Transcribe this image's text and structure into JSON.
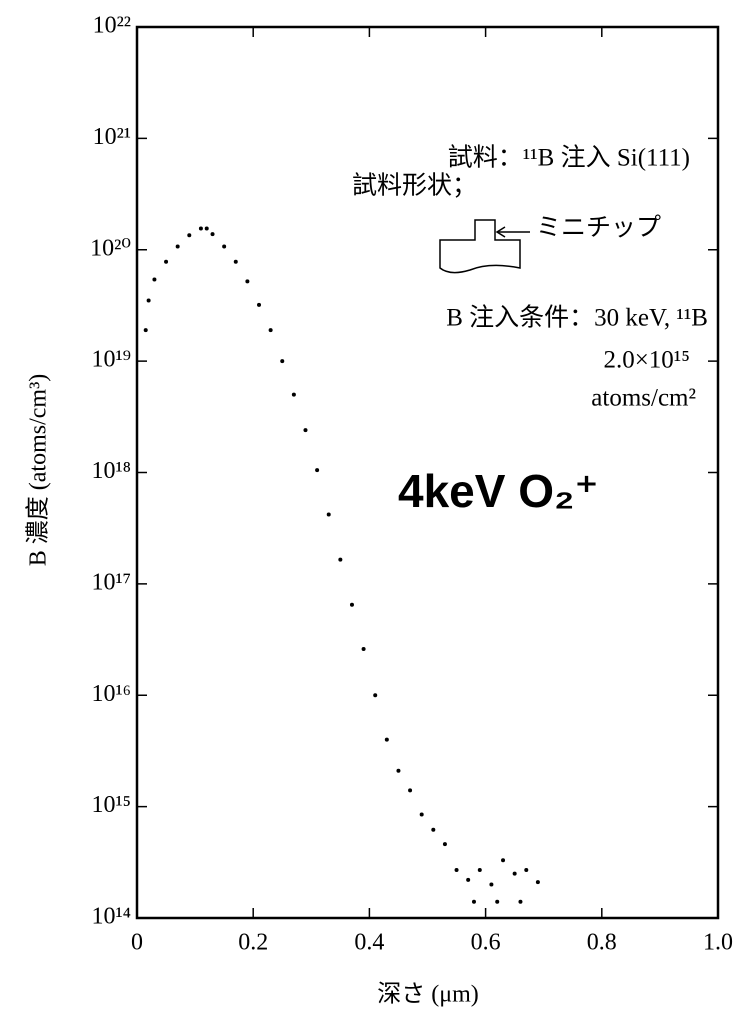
{
  "chart_data": {
    "type": "scatter",
    "xlabel": "深さ (μm)",
    "ylabel": "B 濃度 (atoms/cm³)",
    "annotations": [
      "試料：¹¹B 注入 Si(111)",
      "試料形状；",
      "ミニチップ",
      "B 注入条件：30 keV, ¹¹B",
      "2.0×10¹⁵",
      "atoms/cm²",
      "4keV O₂⁺"
    ],
    "log_y": true,
    "xlim": [
      0,
      1
    ],
    "ylim": [
      100000000000000.0,
      1e+22
    ],
    "xticks": [
      0,
      0.2,
      0.4,
      0.6,
      0.8,
      {
        "value": 1,
        "label": "1.0"
      }
    ],
    "yticks": [
      {
        "value": 100000000000000.0,
        "label": "10¹⁴"
      },
      {
        "value": 1000000000000000.0,
        "label": "10¹⁵"
      },
      {
        "value": 1e+16,
        "label": "10¹⁶"
      },
      {
        "value": 1e+17,
        "label": "10¹⁷"
      },
      {
        "value": 1e+18,
        "label": "10¹⁸"
      },
      {
        "value": 1e+19,
        "label": "10¹⁹"
      },
      {
        "value": 1e+20,
        "label": "10²⁰"
      },
      {
        "value": 1e+21,
        "label": "10²¹"
      },
      {
        "value": 1e+22,
        "label": "10²²"
      }
    ],
    "color": "#000000",
    "x": [
      0.015,
      0.02,
      0.03,
      0.05,
      0.07,
      0.09,
      0.11,
      0.12,
      0.13,
      0.15,
      0.17,
      0.19,
      0.21,
      0.23,
      0.25,
      0.27,
      0.29,
      0.31,
      0.33,
      0.35,
      0.37,
      0.39,
      0.41,
      0.43,
      0.45,
      0.47,
      0.49,
      0.51,
      0.53,
      0.55,
      0.57,
      0.58,
      0.59,
      0.61,
      0.62,
      0.63,
      0.65,
      0.66,
      0.67,
      0.69
    ],
    "values": [
      1.9e+19,
      3.5e+19,
      5.4e+19,
      7.8e+19,
      1.07e+20,
      1.35e+20,
      1.55e+20,
      1.55e+20,
      1.38e+20,
      1.07e+20,
      7.8e+19,
      5.2e+19,
      3.2e+19,
      1.9e+19,
      1e+19,
      5e+18,
      2.4e+18,
      1.05e+18,
      4.2e+17,
      1.65e+17,
      6.5e+16,
      2.6e+16,
      1e+16,
      4000000000000000.0,
      2100000000000000.0,
      1400000000000000.0,
      850000000000000.0,
      620000000000000.0,
      460000000000000.0,
      270000000000000.0,
      220000000000000.0,
      140000000000000.0,
      270000000000000.0,
      200000000000000.0,
      140000000000000.0,
      330000000000000.0,
      250000000000000.0,
      140000000000000.0,
      270000000000000.0,
      210000000000000.0
    ]
  }
}
